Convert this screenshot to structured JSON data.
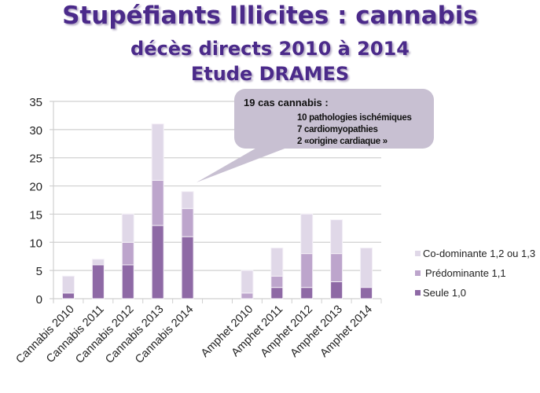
{
  "title": {
    "line1": "Stupéfiants Illicites : cannabis",
    "line2": "décès directs 2010 à 2014",
    "line3": "Etude DRAMES"
  },
  "callout": {
    "head": "19 cas cannabis :",
    "lines": [
      "10 pathologies ischémiques",
      "7 cardiomyopathies",
      "2 «origine cardiaque »"
    ]
  },
  "colors": {
    "seule": "#8e69a5",
    "predominante": "#bda5cc",
    "codominante": "#e0d8e8",
    "grid": "#d0d0d0",
    "callout": "#c8c0d2"
  },
  "chart_data": {
    "type": "bar",
    "stacked": true,
    "categories": [
      "Cannabis 2010",
      "Cannabis 2011",
      "Cannabis 2012",
      "Cannabis 2013",
      "Cannabis 2014",
      "",
      "Amphet 2010",
      "Amphet 2011",
      "Amphet 2012",
      "Amphet 2013",
      "Amphet 2014"
    ],
    "series": [
      {
        "name": "Seule 1,0",
        "values": [
          1,
          6,
          6,
          13,
          11,
          0,
          0,
          2,
          2,
          3,
          2
        ]
      },
      {
        "name": "Prédominante 1,1",
        "values": [
          0,
          0,
          4,
          8,
          5,
          0,
          1,
          2,
          6,
          5,
          0
        ]
      },
      {
        "name": "Co-dominante 1,2 ou 1,3",
        "values": [
          3,
          1,
          5,
          10,
          3,
          0,
          4,
          5,
          7,
          6,
          7
        ]
      }
    ],
    "ylim": [
      0,
      35
    ],
    "yticks": [
      "0",
      "5",
      "10",
      "15",
      "20",
      "25",
      "30",
      "35"
    ],
    "grid": true,
    "legend": "right",
    "legend_order": [
      "Co-dominante 1,2 ou 1,3",
      "Prédominante 1,1",
      "Seule 1,0"
    ]
  }
}
